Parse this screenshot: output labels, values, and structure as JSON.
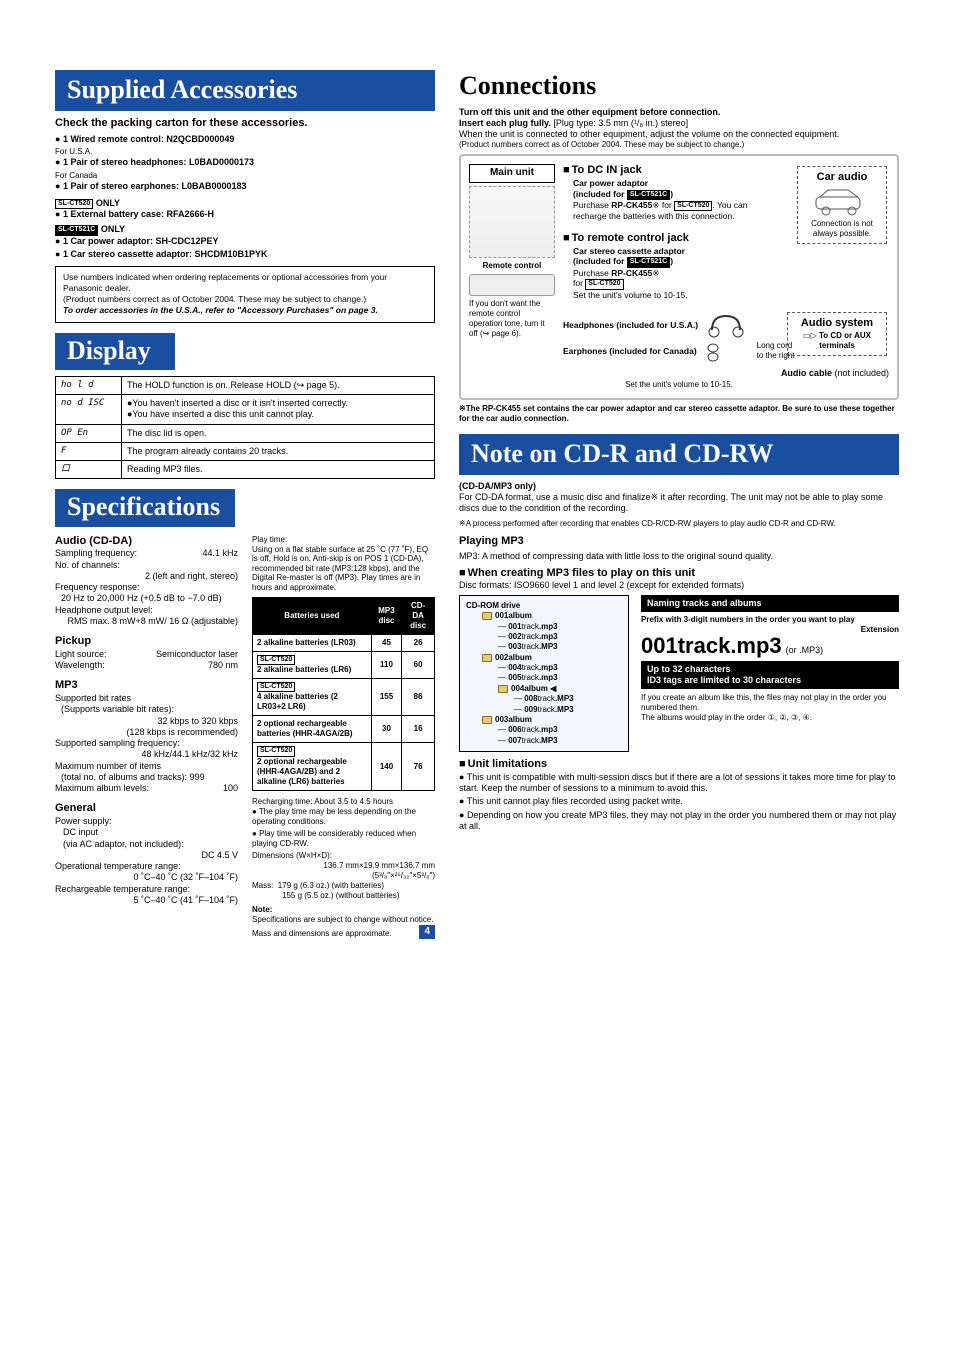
{
  "sections": {
    "supplied": {
      "title": "Supplied Accessories",
      "check_line": "Check the packing carton for these accessories.",
      "items_common": [
        "1 Wired remote control: N2QCBD000049"
      ],
      "for_usa": "For U.S.A.",
      "items_usa": [
        "1 Pair of stereo headphones: L0BAD0000173"
      ],
      "for_canada": "For Canada",
      "items_canada": [
        "1 Pair of stereo earphones: L0BAB0000183"
      ],
      "only520_items": [
        "1 External battery case: RFA2666-H"
      ],
      "only521_items": [
        "1 Car power adaptor: SH-CDC12PEY",
        "1 Car stereo cassette adaptor: SHCDM10B1PYK"
      ],
      "box_line1": "Use numbers indicated when ordering replacements or optional accessories from your Panasonic dealer.",
      "box_line2": "(Product numbers correct as of October 2004. These may be subject to change.)",
      "box_line3": "To order accessories in the U.S.A., refer to \"Accessory Purchases\" on page 3.",
      "only_label": "ONLY",
      "tag520": "SL-CT520",
      "tag521": "SL-CT521C"
    },
    "display": {
      "title": "Display",
      "rows": [
        {
          "code": "ho l d",
          "desc": "The HOLD function is on. Release HOLD (↪ page 5)."
        },
        {
          "code": "no d ISC",
          "desc": "●You haven't inserted a disc or it isn't inserted correctly.\n●You have inserted a disc this unit cannot play."
        },
        {
          "code": "OP En",
          "desc": "The disc lid is open."
        },
        {
          "code": "F",
          "desc": "The program already contains 20 tracks."
        },
        {
          "code": "口",
          "desc": "Reading MP3 files."
        }
      ]
    },
    "specifications": {
      "title": "Specifications",
      "audio_title": "Audio (CD-DA)",
      "audio": {
        "sampling_freq_label": "Sampling frequency:",
        "sampling_freq_val": "44.1 kHz",
        "channels_label": "No. of channels:",
        "channels_val": "2 (left and right, stereo)",
        "freq_resp_label": "Frequency response:",
        "freq_resp_val": "20 Hz to 20,000 Hz (+0.5 dB to −7.0 dB)",
        "hp_out_label": "Headphone output level:",
        "hp_out_val": "RMS max. 8 mW+8 mW/ 16 Ω (adjustable)"
      },
      "pickup_title": "Pickup",
      "pickup": {
        "light_label": "Light source:",
        "light_val": "Semiconductor laser",
        "wav_label": "Wavelength:",
        "wav_val": "780 nm"
      },
      "mp3_title": "MP3",
      "mp3": {
        "line1": "Supported bit rates",
        "line1b": "(Supports variable bit rates):",
        "line1c": "32 kbps to 320 kbps",
        "line1d": "(128 kbps is recommended)",
        "line2": "Supported sampling frequency:",
        "line2b": "48 kHz/44.1 kHz/32 kHz",
        "line3": "Maximum number of items",
        "line3b": "(total no. of albums and tracks): 999",
        "line4": "Maximum album levels:",
        "line4b": "100"
      },
      "general_title": "General",
      "general": {
        "ps_label": "Power supply:",
        "ps_1": "DC input",
        "ps_2": "(via AC adaptor, not included):",
        "ps_2b": "DC 4.5 V",
        "ot_label": "Operational temperature range:",
        "ot_val": "0 ˚C–40 ˚C (32 ˚F–104 ˚F)",
        "rc_label": "Rechargeable temperature range:",
        "rc_val": "5 ˚C–40 ˚C (41 ˚F–104 ˚F)"
      },
      "playtime_title": "Play time:",
      "playtime_desc": "Using on a flat stable surface at 25 ˚C (77 ˚F), EQ is off, Hold is on, Anti-skip is on POS 1 (CD-DA), recommended bit rate (MP3:128 kbps), and the Digital Re-master is off (MP3). Play times are in hours and approximate.",
      "bat_table": {
        "headers": [
          "Batteries used",
          "MP3 disc",
          "CD-DA disc"
        ],
        "rows": [
          {
            "label": "2 alkaline batteries (LR03)",
            "tag": null,
            "mp3": "45",
            "cdda": "26"
          },
          {
            "label": "2 alkaline batteries (LR6)",
            "tag": "SL-CT520",
            "mp3": "110",
            "cdda": "60"
          },
          {
            "label": "4 alkaline batteries (2 LR03+2 LR6)",
            "tag": "SL-CT520",
            "mp3": "155",
            "cdda": "86"
          },
          {
            "label": "2 optional rechargeable batteries (HHR-4AGA/2B)",
            "tag": null,
            "mp3": "30",
            "cdda": "16"
          },
          {
            "label": "2 optional rechargeable (HHR-4AGA/2B) and 2 alkaline (LR6) batteries",
            "tag": "SL-CT520",
            "mp3": "140",
            "cdda": "76"
          }
        ]
      },
      "recharge_line": "Recharging time:     About 3.5 to 4.5 hours",
      "play_bullets": [
        "The play time may be less depending on the operating conditions.",
        "Play time will be considerably reduced when playing CD-RW."
      ],
      "dim_label": "Dimensions (W×H×D):",
      "dim_val": "136.7 mm×19.9 mm×136.7 mm",
      "dim_val2": "(5³/₈″×²⁵/₃₂″×5³/₈″)",
      "mass_label": "Mass:",
      "mass_val1": "179 g (6.3 oz.) (with batteries)",
      "mass_val2": "155 g (5.5 oz.) (without batteries)",
      "note_title": "Note:",
      "note_1": "Specifications are subject to change without notice.",
      "note_2": "Mass and dimensions are approximate."
    },
    "connections": {
      "title": "Connections",
      "top1": "Turn off this unit and the other equipment before connection.",
      "top2_a": "Insert each plug fully.",
      "top2_b": " [Plug type: 3.5 mm (¹/₈ in.) stereo]",
      "top3": "When the unit is connected to other equipment, adjust the volume on the connected equipment.",
      "top4": "(Product numbers correct as of October 2004. These may be subject to change.)",
      "main_unit": "Main unit",
      "dc_in": "To DC IN jack",
      "car_adaptor_title": "Car power adaptor",
      "car_adaptor_inc": "(included for ",
      "car_adaptor_inc_tag": "SL-CT521C",
      "car_adaptor_inc_close": ")",
      "purchase_rp": "Purchase ",
      "purchase_rp_b": "RP-CK455",
      "purchase_rp_after": "※ for ",
      "purchase_rp_tag": "SL-CT520",
      "purchase_rp_note": ". You can recharge the batteries with this connection.",
      "car_audio": "Car audio",
      "conn_note": "Connection is not always possible.",
      "remote_jack": "To remote control jack",
      "cassette_title": "Car stereo cassette adaptor",
      "cassette_inc": "(included for ",
      "cassette_inc_tag": "SL-CT521C",
      "cassette_inc_close": ")",
      "purchase_rp2a": "Purchase ",
      "purchase_rp2b": "RP-CK455",
      "purchase_rp2after": "※",
      "for_label": "for ",
      "for_tag": "SL-CT520",
      "remote_control_label": "Remote control",
      "remote_note": "If you don't want the remote control operation tone, turn it off (↪ page 6).",
      "set_vol": "Set the unit's volume to 10-15.",
      "hp_usa": "Headphones (included for U.S.A.)",
      "ep_canada": "Earphones (included for Canada)",
      "long_cord": "Long cord to the right",
      "audio_cable_a": "Audio cable",
      "audio_cable_b": " (not included)",
      "audio_system": "Audio system",
      "to_cd_aux": "To CD or AUX terminals",
      "set_vol2": "Set the unit's volume to 10-15.",
      "foot_note": "※The RP-CK455 set contains the car power adaptor and car stereo cassette adaptor. Be sure to use these together for the car audio connection."
    },
    "cdr": {
      "title": "Note on CD-R and CD-RW",
      "subtitle": "(CD-DA/MP3 only)",
      "p1": "For CD-DA format, use a music disc and finalize※ it after recording. The unit may not be able to play some discs due to the condition of the recording.",
      "p2": "※A process performed after recording that enables CD-R/CD-RW players to play audio CD-R and CD-RW.",
      "playing_mp3": "Playing MP3",
      "playing_mp3_desc": "MP3: A method of compressing data with little loss to the original sound quality.",
      "when_creating": "When creating MP3 files to play on this unit",
      "disc_formats": "Disc formats: ISO9660 level 1 and level 2 (except for extended formats)",
      "cdrom_drive": "CD-ROM drive",
      "album1": "001album",
      "album2": "002album",
      "album3": "003album",
      "album4": "004album",
      "tracks_a1": [
        "001track.mp3",
        "002track.mp3",
        "003track.MP3"
      ],
      "tracks_a2": [
        "004track.mp3",
        "005track.mp3"
      ],
      "tracks_a4": [
        "008track.MP3",
        "009track.MP3"
      ],
      "tracks_a3": [
        "006track.mp3",
        "007track.MP3"
      ],
      "naming_title": "Naming tracks and albums",
      "naming_sub": "Prefix with 3-digit numbers in the order you want to play",
      "extension_label": "Extension",
      "example_big": "001track.mp3",
      "example_sm": "(or .MP3)",
      "upto32": "Up to 32 characters",
      "id3": "ID3 tags are limited to 30 characters",
      "nested_note": "If you create an album like this, the files may not play in the order you numbered them.",
      "nested_note2": "The albums would play in the order ①, ②, ③, ④.",
      "unit_lim": "Unit limitations",
      "unit_lim_items": [
        "This unit is compatible with multi-session discs but if there are a lot of sessions it takes more time for play to start. Keep the number of sessions to a minimum to avoid this.",
        "This unit cannot play files recorded using packet write.",
        "Depending on how you create MP3 files, they may not play in the order you numbered them or may not play at all."
      ]
    },
    "page_num": "4"
  }
}
